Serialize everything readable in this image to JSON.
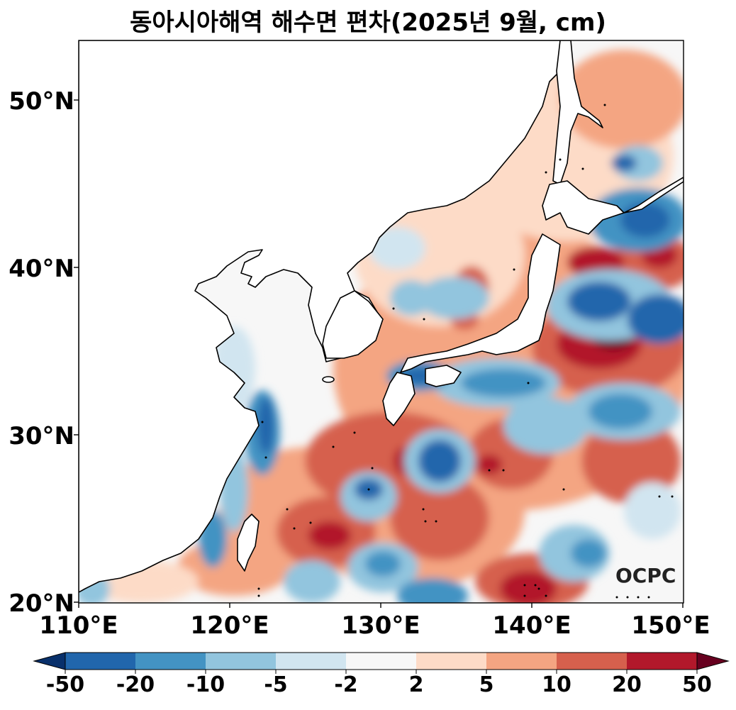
{
  "title": "동아시아해역 해수면 편차(2025년 9월, cm)",
  "watermark": "OCPC",
  "map": {
    "lon_range": [
      110,
      150
    ],
    "lat_range": [
      20,
      53.5
    ],
    "lat_labels": [
      "20°N",
      "30°N",
      "40°N",
      "50°N"
    ],
    "lon_labels": [
      "110°E",
      "120°E",
      "130°E",
      "140°E",
      "150°E"
    ],
    "land_color": "#ffffff",
    "coastline_color": "#000000"
  },
  "colorbar": {
    "ticks": [
      "-50",
      "-20",
      "-10",
      "-5",
      "-2",
      "2",
      "5",
      "10",
      "20",
      "50"
    ],
    "colors": [
      "#08306b",
      "#2166ac",
      "#4393c3",
      "#92c5de",
      "#d1e5f0",
      "#f7f7f7",
      "#fddbc7",
      "#f4a582",
      "#d6604d",
      "#b2182b",
      "#67001f"
    ],
    "extend": "both"
  }
}
